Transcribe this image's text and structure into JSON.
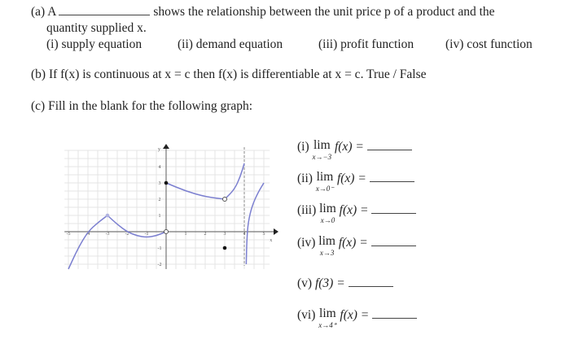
{
  "part_a": {
    "label": "(a) A",
    "text": "shows the relationship between the unit price p of a product and the",
    "line2": "quantity supplied x.",
    "options": [
      "(i) supply equation",
      "(ii) demand equation",
      "(iii) profit function",
      "(iv) cost function"
    ]
  },
  "part_b": {
    "text": "(b) If f(x) is continuous at x = c then f(x) is differentiable at x = c. True / False"
  },
  "part_c": {
    "text": "(c) Fill in the blank for the following graph:"
  },
  "limits": [
    {
      "label": "(i)",
      "lim": "lim",
      "sub": "x→−3",
      "expr": "f(x) ="
    },
    {
      "label": "(ii)",
      "lim": "lim",
      "sub": "x→0⁻",
      "expr": "f(x) ="
    },
    {
      "label": "(iii)",
      "lim": "lim",
      "sub": "x→0",
      "expr": "f(x) ="
    },
    {
      "label": "(iv)",
      "lim": "lim",
      "sub": "x→3",
      "expr": "f(x) ="
    },
    {
      "label": "(v)",
      "lim": "",
      "sub": "",
      "expr": "f(3) ="
    },
    {
      "label": "(vi)",
      "lim": "lim",
      "sub": "x→4⁺",
      "expr": "f(x) ="
    }
  ],
  "graph": {
    "x_ticks": [
      "-5",
      "-4",
      "-3",
      "-2",
      "-1",
      "1",
      "2",
      "3",
      "4",
      "5"
    ],
    "y_ticks": [
      "-2",
      "-1",
      "1",
      "2",
      "3",
      "4"
    ],
    "x_label": "x",
    "y_label": "y",
    "curve_color": "#7b7fd0",
    "curves": [
      [
        [
          -5,
          -2.3
        ],
        [
          -4.5,
          -1
        ],
        [
          -4,
          0
        ],
        [
          -3.5,
          0.55
        ],
        [
          -3,
          1
        ]
      ],
      [
        [
          -3,
          1
        ],
        [
          -2.5,
          0.45
        ],
        [
          -2,
          0
        ],
        [
          -1.5,
          -0.25
        ],
        [
          -1,
          -0.35
        ],
        [
          -0.5,
          -0.25
        ],
        [
          0,
          0
        ]
      ],
      [
        [
          0,
          3
        ],
        [
          1,
          2.5
        ],
        [
          2,
          2.15
        ],
        [
          3,
          2
        ]
      ],
      [
        [
          3,
          2
        ],
        [
          3.5,
          2.6
        ],
        [
          3.8,
          3.4
        ],
        [
          4,
          4.2
        ]
      ],
      [
        [
          4.1,
          -2
        ],
        [
          4.13,
          -0.5
        ],
        [
          4.2,
          0.6
        ],
        [
          4.4,
          1.6
        ],
        [
          4.7,
          2.4
        ],
        [
          5,
          3
        ]
      ]
    ],
    "asymptote_x": 4,
    "open_points": [
      [
        0,
        0
      ],
      [
        3,
        2
      ]
    ],
    "closed_points": [
      [
        -3,
        1
      ],
      [
        0,
        3
      ],
      [
        3,
        -1
      ]
    ]
  }
}
